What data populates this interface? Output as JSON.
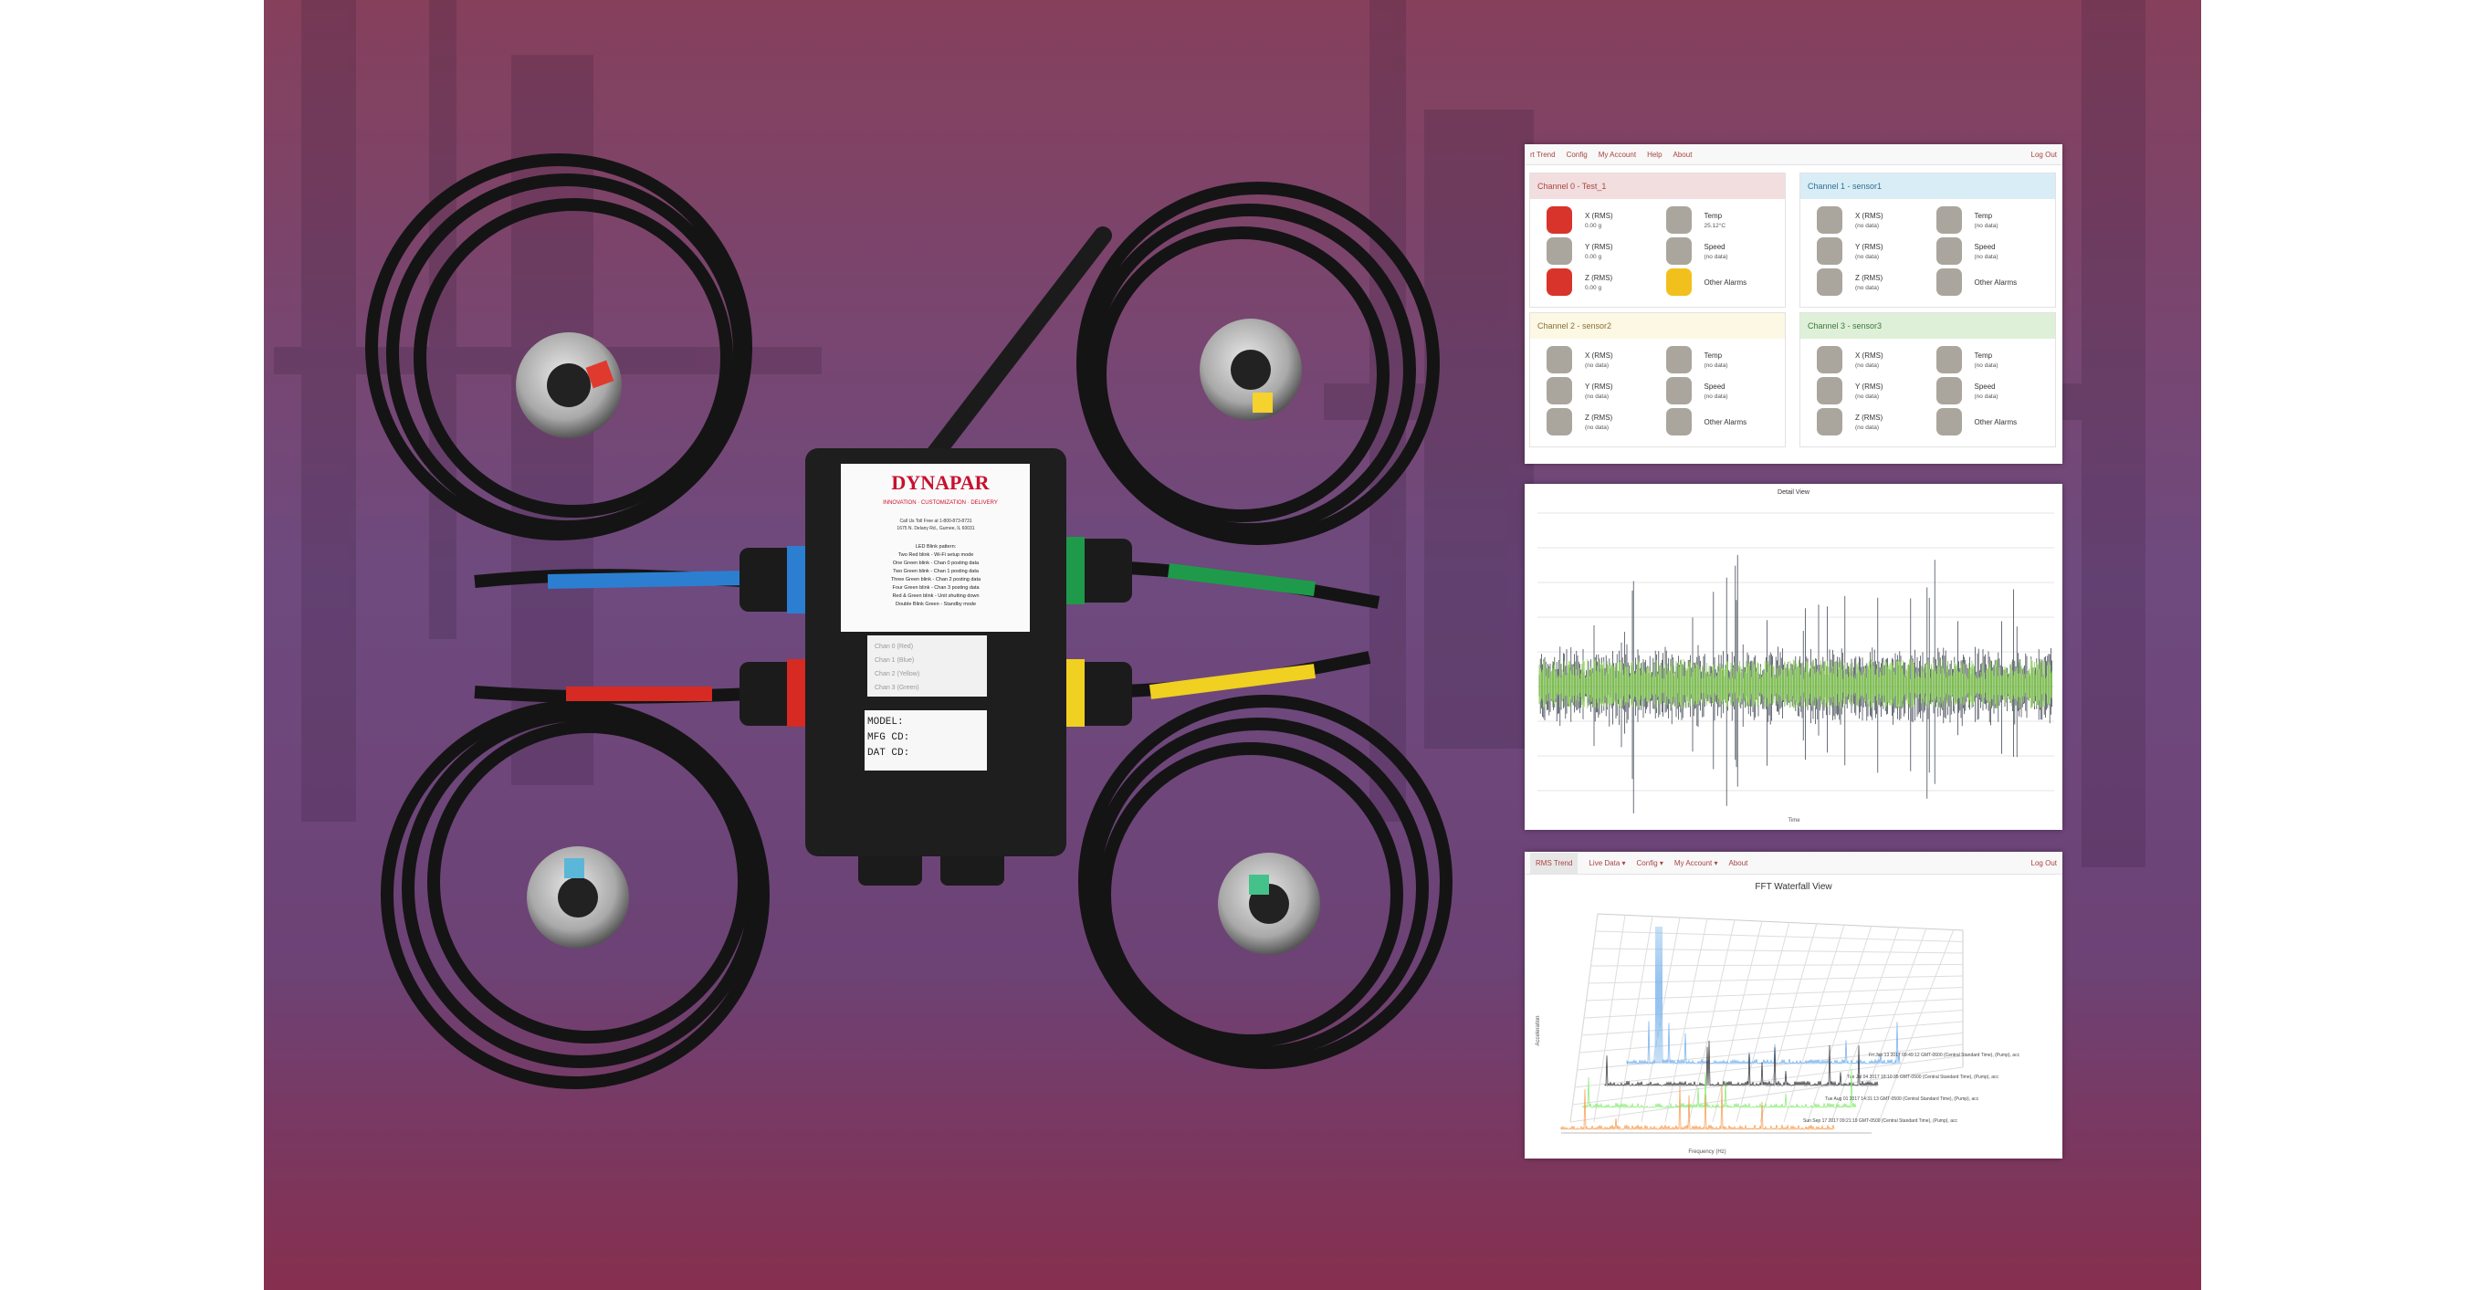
{
  "product": {
    "brand": "DYNAPAR",
    "tagline": "INNOVATION · CUSTOMIZATION · DELIVERY",
    "contact": [
      "Call Us Toll Free at 1-800-873-8731",
      "1675 N. Delany Rd., Gurnee, IL 60031"
    ],
    "led_title": "LED Blink pattern:",
    "led_lines": [
      "Two Red blink - Wi-Fi setup mode",
      "One Green blink - Chan 0 posting data",
      "Two Green blink - Chan 1 posting data",
      "Three Green blink - Chan 2 posting data",
      "Four Green blink - Chan 3 posting data",
      "Red & Green blink - Unit shutting down",
      "Double Blink Green - Standby mode"
    ],
    "channel_labels": [
      "Chan 0 (Red)",
      "Chan 1 (Blue)",
      "Chan 2 (Yellow)",
      "Chan 3 (Green)"
    ],
    "plate_labels": [
      "MODEL:",
      "MFG CD:",
      "DAT CD:"
    ]
  },
  "dashboard": {
    "nav": [
      "rt Trend",
      "Config",
      "My Account",
      "Help",
      "About"
    ],
    "logout": "Log Out",
    "channels": [
      {
        "title": "Channel 0 - Test_1",
        "header_color": "#f2dede",
        "title_color": "#a94442",
        "items": [
          {
            "name": "X (RMS)",
            "value": "0.00 g",
            "color": "#d9342b"
          },
          {
            "name": "Y (RMS)",
            "value": "0.00 g",
            "color": "#aaa59d"
          },
          {
            "name": "Z (RMS)",
            "value": "0.00 g",
            "color": "#d9342b"
          },
          {
            "name": "Temp",
            "value": "25.12°C",
            "color": "#aaa59d"
          },
          {
            "name": "Speed",
            "value": "(no data)",
            "color": "#aaa59d"
          },
          {
            "name": "Other Alarms",
            "color": "#f2c01d"
          }
        ]
      },
      {
        "title": "Channel 1 - sensor1",
        "header_color": "#d9edf7",
        "title_color": "#31708f",
        "items": [
          {
            "name": "X (RMS)",
            "value": "(no data)",
            "color": "#aaa59d"
          },
          {
            "name": "Y (RMS)",
            "value": "(no data)",
            "color": "#aaa59d"
          },
          {
            "name": "Z (RMS)",
            "value": "(no data)",
            "color": "#aaa59d"
          },
          {
            "name": "Temp",
            "value": "(no data)",
            "color": "#aaa59d"
          },
          {
            "name": "Speed",
            "value": "(no data)",
            "color": "#aaa59d"
          },
          {
            "name": "Other Alarms",
            "color": "#aaa59d"
          }
        ]
      },
      {
        "title": "Channel 2 - sensor2",
        "header_color": "#fcf8e3",
        "title_color": "#8a6d3b",
        "items": [
          {
            "name": "X (RMS)",
            "value": "(no data)",
            "color": "#aaa59d"
          },
          {
            "name": "Y (RMS)",
            "value": "(no data)",
            "color": "#aaa59d"
          },
          {
            "name": "Z (RMS)",
            "value": "(no data)",
            "color": "#aaa59d"
          },
          {
            "name": "Temp",
            "value": "(no data)",
            "color": "#aaa59d"
          },
          {
            "name": "Speed",
            "value": "(no data)",
            "color": "#aaa59d"
          },
          {
            "name": "Other Alarms",
            "color": "#aaa59d"
          }
        ]
      },
      {
        "title": "Channel 3 - sensor3",
        "header_color": "#dff0d8",
        "title_color": "#3c763d",
        "items": [
          {
            "name": "X (RMS)",
            "value": "(no data)",
            "color": "#aaa59d"
          },
          {
            "name": "Y (RMS)",
            "value": "(no data)",
            "color": "#aaa59d"
          },
          {
            "name": "Z (RMS)",
            "value": "(no data)",
            "color": "#aaa59d"
          },
          {
            "name": "Temp",
            "value": "(no data)",
            "color": "#aaa59d"
          },
          {
            "name": "Speed",
            "value": "(no data)",
            "color": "#aaa59d"
          },
          {
            "name": "Other Alarms",
            "color": "#aaa59d"
          }
        ]
      }
    ]
  },
  "detail": {
    "title": "Detail View",
    "x_label": "Time"
  },
  "waterfall": {
    "nav": [
      "RMS Trend",
      "Live Data ▾",
      "Config ▾",
      "My Account ▾",
      "About"
    ],
    "logout": "Log Out",
    "title": "FFT Waterfall View",
    "x_label": "Frequency (Hz)",
    "y_label": "Acceleration",
    "traces": [
      {
        "label": "Fri Jan 13 2017 09:49:12 GMT-0600 (Central Standard Time), (Pump), acc",
        "color": "#7cb5ec"
      },
      {
        "label": "Tue Jul 04 2017 18:10:35 GMT-0500 (Central Standard Time), (Pump), acc",
        "color": "#434348"
      },
      {
        "label": "Tue Aug 01 2017 14:31:13 GMT-0500 (Central Standard Time), (Pump), acc",
        "color": "#90ed7d"
      },
      {
        "label": "Sun Sep 17 2017 09:21:19 GMT-0500 (Central Standard Time), (Pump), acc",
        "color": "#f7a35c"
      }
    ]
  }
}
